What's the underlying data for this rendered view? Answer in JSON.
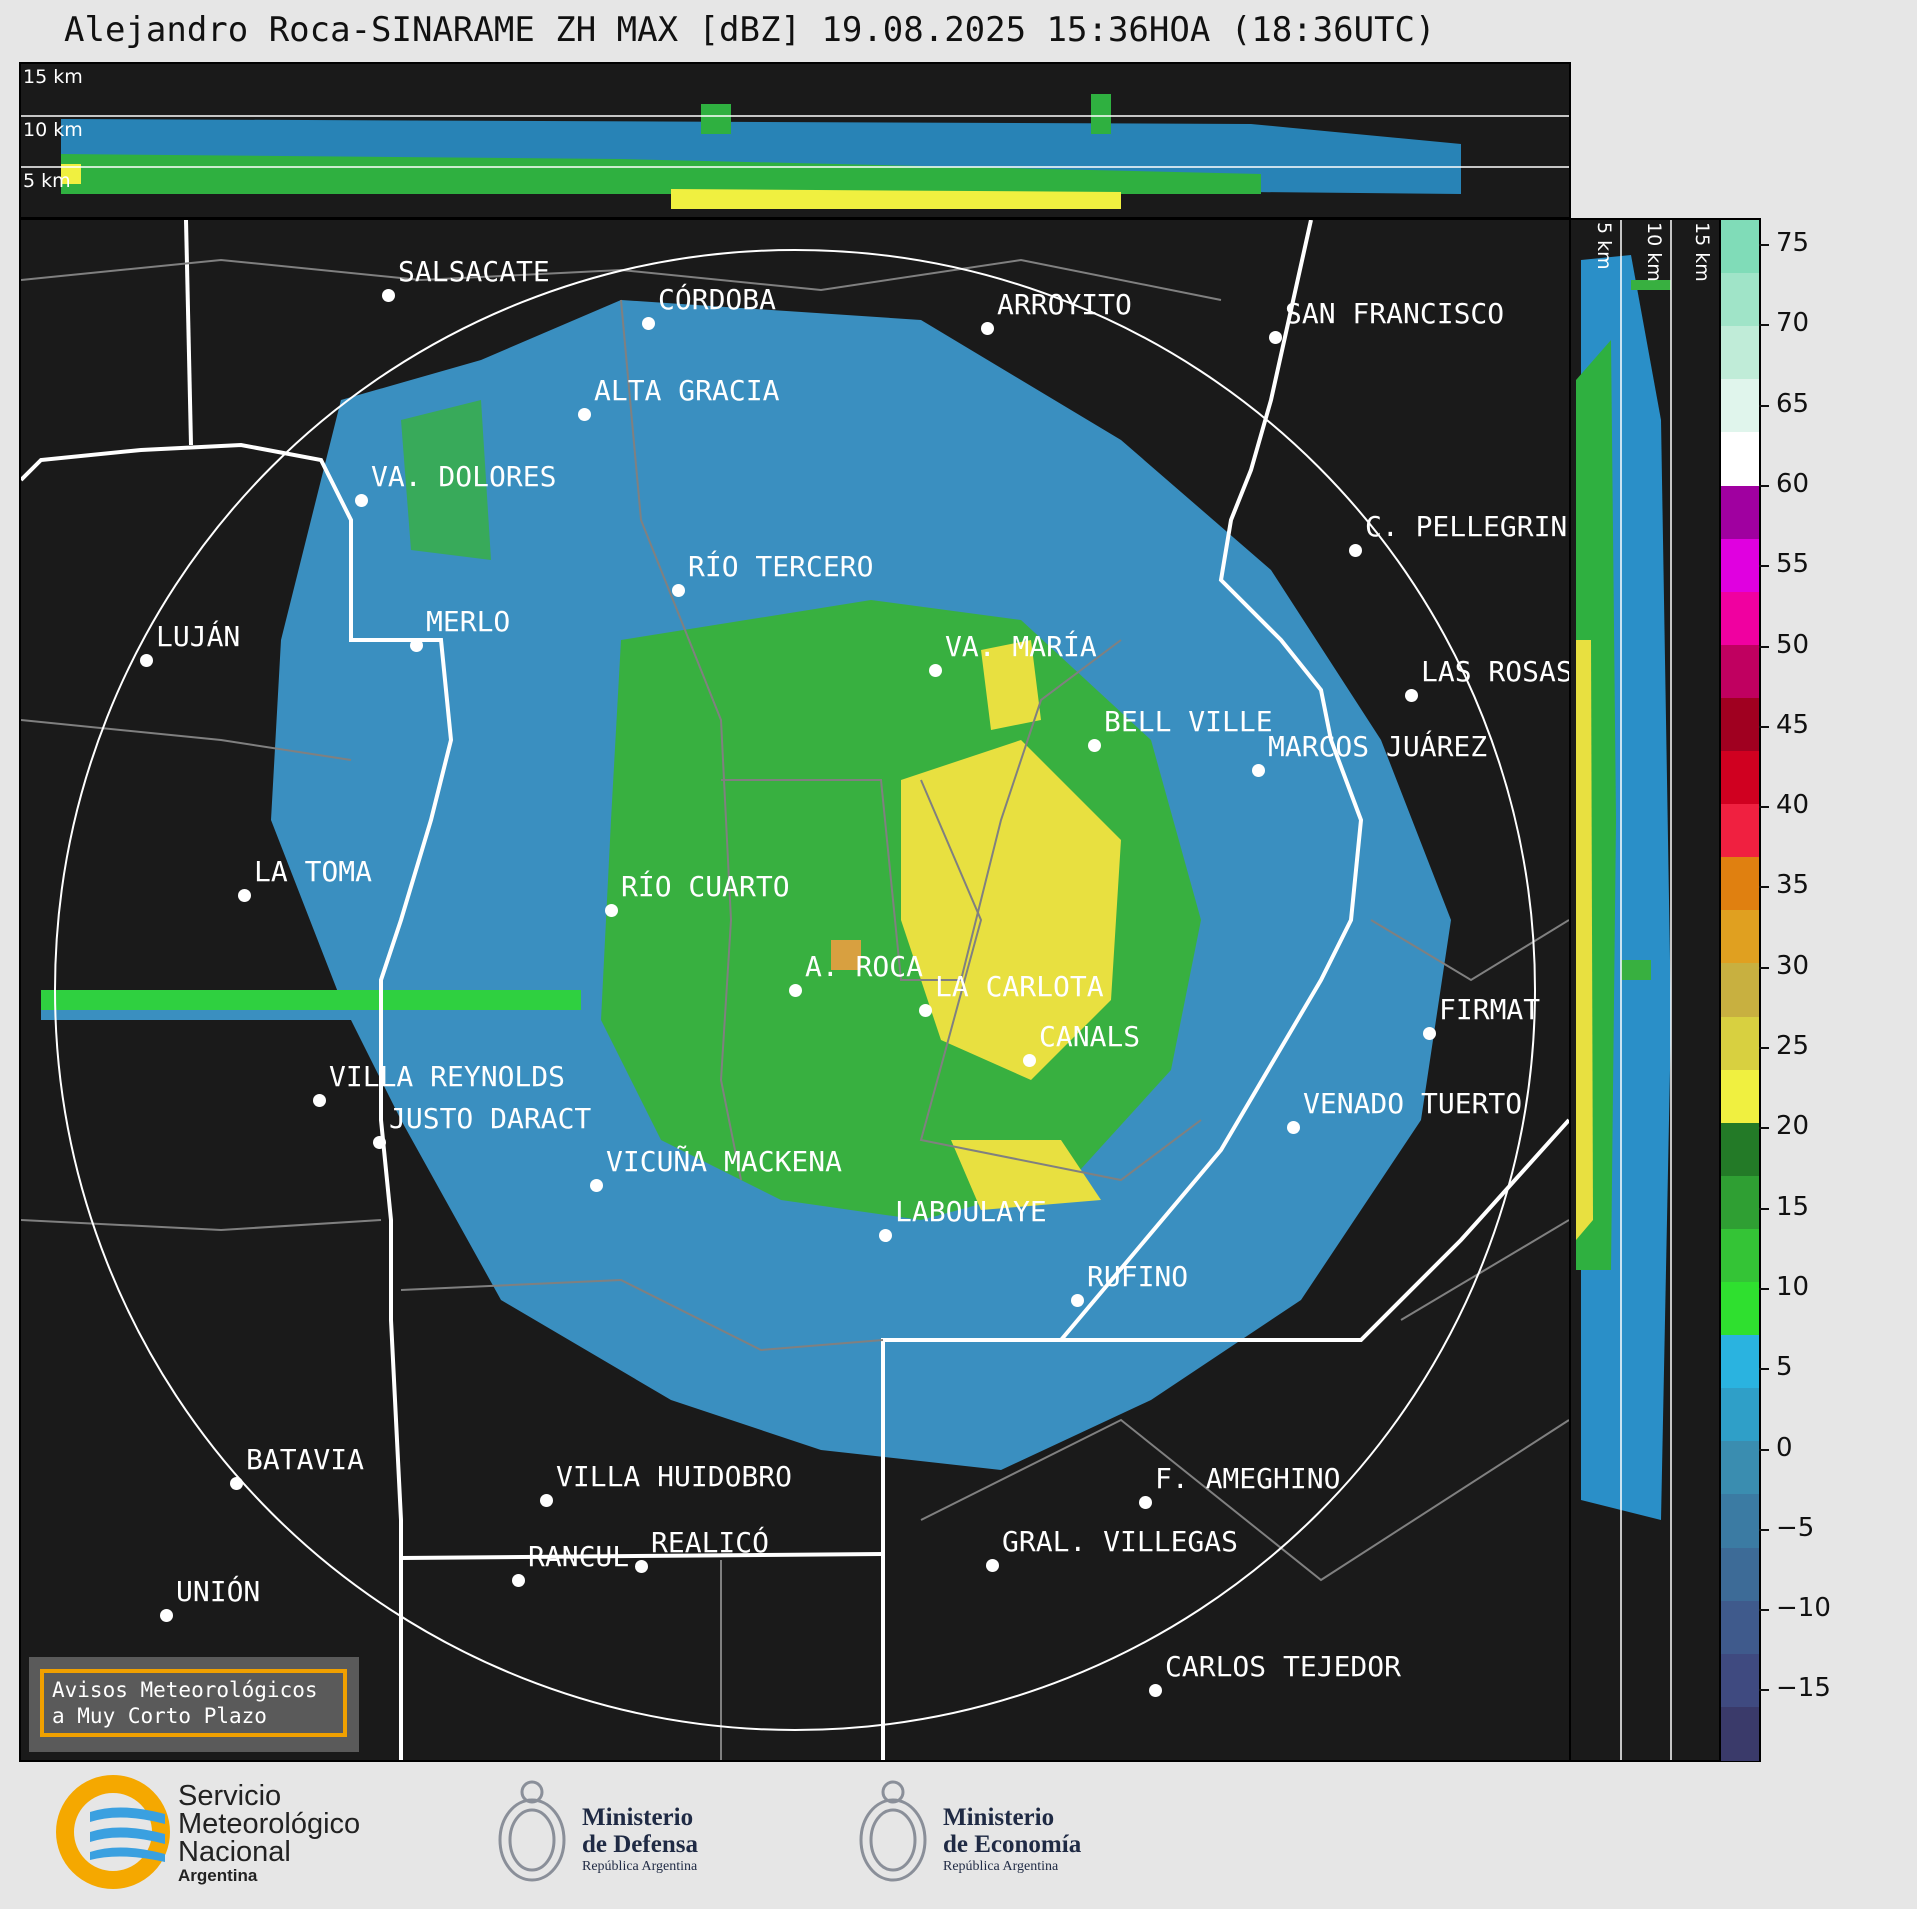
{
  "title": "Alejandro Roca-SINARAME ZH MAX [dBZ] 19.08.2025 15:36HOA (18:36UTC)",
  "height_labels": [
    "15 km",
    "10 km",
    "5 km"
  ],
  "colorbar": {
    "ticks": [
      "75",
      "70",
      "65",
      "60",
      "55",
      "50",
      "45",
      "40",
      "35",
      "30",
      "25",
      "20",
      "15",
      "10",
      "5",
      "0",
      "−5",
      "−10",
      "−15"
    ],
    "colors": [
      "#3a3a6a",
      "#3f4a80",
      "#3f5a8c",
      "#3d6b97",
      "#3b7ba3",
      "#3a8db0",
      "#2f9fc8",
      "#2ab3e0",
      "#2fe02f",
      "#34c436",
      "#2f9f33",
      "#237a27",
      "#f0f040",
      "#d8d040",
      "#c8b040",
      "#e0a020",
      "#e08010",
      "#f02040",
      "#d00020",
      "#a00020",
      "#c00060",
      "#f000a0",
      "#e000e0",
      "#a000a0",
      "#ffffff",
      "#e0f5ec",
      "#c0ecd8",
      "#a0e4c8",
      "#80dcb8"
    ]
  },
  "cities": [
    {
      "name": "SALSACATE"
    },
    {
      "name": "CÓRDOBA"
    },
    {
      "name": "ARROYITO"
    },
    {
      "name": "SAN FRANCISCO"
    },
    {
      "name": "ALTA GRACIA"
    },
    {
      "name": "VA. DOLORES"
    },
    {
      "name": "C. PELLEGRINI"
    },
    {
      "name": "RÍO TERCERO"
    },
    {
      "name": "MERLO"
    },
    {
      "name": "LUJÁN"
    },
    {
      "name": "VA. MARÍA"
    },
    {
      "name": "LAS ROSAS"
    },
    {
      "name": "BELL VILLE"
    },
    {
      "name": "MARCOS JUÁREZ"
    },
    {
      "name": "LA TOMA"
    },
    {
      "name": "RÍO CUARTO"
    },
    {
      "name": "A. ROCA"
    },
    {
      "name": "LA CARLOTA"
    },
    {
      "name": "FIRMAT"
    },
    {
      "name": "CANALS"
    },
    {
      "name": "VILLA REYNOLDS"
    },
    {
      "name": "VENADO TUERTO"
    },
    {
      "name": "JUSTO DARACT"
    },
    {
      "name": "VICUÑA MACKENA"
    },
    {
      "name": "LABOULAYE"
    },
    {
      "name": "RUFINO"
    },
    {
      "name": "BATAVIA"
    },
    {
      "name": "VILLA HUIDOBRO"
    },
    {
      "name": "F. AMEGHINO"
    },
    {
      "name": "RANCUL"
    },
    {
      "name": "REALICÓ"
    },
    {
      "name": "GRAL. VILLEGAS"
    },
    {
      "name": "UNIÓN"
    },
    {
      "name": "CARLOS TEJEDOR"
    }
  ],
  "avisos": [
    "Avisos Meteorológicos",
    "a Muy Corto Plazo"
  ],
  "footer": {
    "smn": [
      "Servicio",
      "Meteorológico",
      "Nacional",
      "Argentina"
    ],
    "defensa": [
      "Ministerio",
      "de Defensa",
      "República Argentina"
    ],
    "economia": [
      "Ministerio",
      "de Economía",
      "República Argentina"
    ]
  }
}
